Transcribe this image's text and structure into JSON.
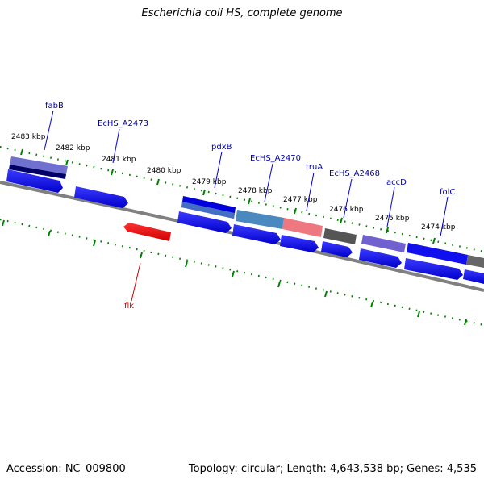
{
  "title": "Escherichia coli HS, complete genome",
  "footer": {
    "accession": "Accession: NC_009800",
    "summary": "Topology: circular; Length: 4,643,538 bp; Genes: 4,535"
  },
  "ticks": [
    "2483 kbp",
    "2482 kbp",
    "2481 kbp",
    "2480 kbp",
    "2479 kbp",
    "2478 kbp",
    "2477 kbp",
    "2476 kbp",
    "2475 kbp",
    "2474 kbp"
  ],
  "genes": [
    {
      "name": "fabB",
      "color": "#0000aa"
    },
    {
      "name": "EcHS_A2473",
      "color": "#0000aa"
    },
    {
      "name": "pdxB",
      "color": "#0000aa"
    },
    {
      "name": "EcHS_A2470",
      "color": "#0000aa"
    },
    {
      "name": "truA",
      "color": "#0000aa"
    },
    {
      "name": "EcHS_A2468",
      "color": "#0000aa"
    },
    {
      "name": "accD",
      "color": "#0000aa"
    },
    {
      "name": "folC",
      "color": "#0000aa"
    },
    {
      "name": "flk",
      "color": "#cc0000"
    }
  ]
}
